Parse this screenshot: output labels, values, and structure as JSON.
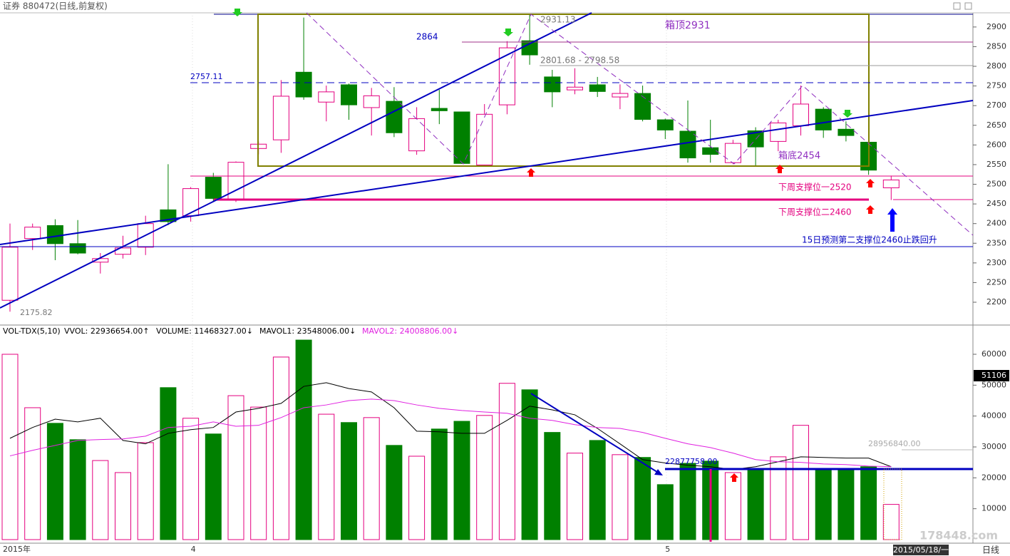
{
  "chart_data": [
    {
      "type": "candlestick",
      "title": "证券 880472(日线,前复权)",
      "categories": [
        "2015年",
        null,
        null,
        null,
        null,
        null,
        null,
        null,
        "4",
        null,
        null,
        null,
        null,
        null,
        null,
        null,
        null,
        null,
        null,
        null,
        null,
        null,
        null,
        null,
        null,
        null,
        null,
        null,
        null,
        "5",
        null,
        null,
        null,
        null,
        null,
        null,
        null,
        null,
        null,
        null
      ],
      "open": [
        2205,
        2362,
        2395,
        2349,
        2302,
        2322,
        2340,
        2435,
        2420,
        2518,
        2460,
        2591,
        2613,
        2785,
        2709,
        2753,
        2695,
        2711,
        2585,
        2693,
        2684,
        2549,
        2702,
        2865,
        2773,
        2740,
        2753,
        2722,
        2731,
        2664,
        2635,
        2593,
        2555,
        2636,
        2609,
        2649,
        2691,
        2640,
        2607,
        2491
      ],
      "high": [
        2400,
        2400,
        2411,
        2409,
        2325,
        2369,
        2420,
        2551,
        2493,
        2529,
        2558,
        2609,
        2765,
        2924,
        2751,
        2756,
        2745,
        2747,
        2696,
        2740,
        2684,
        2704,
        2864,
        2931,
        2791,
        2795,
        2773,
        2754,
        2751,
        2667,
        2713,
        2664,
        2613,
        2645,
        2664,
        2751,
        2696,
        2660,
        2607,
        2522
      ],
      "low": [
        2176,
        2333,
        2307,
        2322,
        2273,
        2311,
        2320,
        2396,
        2405,
        2456,
        2455,
        2576,
        2580,
        2715,
        2660,
        2664,
        2624,
        2620,
        2575,
        2653,
        2552,
        2545,
        2678,
        2804,
        2696,
        2729,
        2722,
        2691,
        2660,
        2615,
        2555,
        2555,
        2551,
        2545,
        2584,
        2624,
        2618,
        2609,
        2524,
        2460
      ],
      "close": [
        2340,
        2391,
        2349,
        2325,
        2311,
        2338,
        2400,
        2405,
        2489,
        2464,
        2556,
        2602,
        2724,
        2722,
        2735,
        2702,
        2725,
        2631,
        2667,
        2687,
        2553,
        2678,
        2847,
        2829,
        2735,
        2747,
        2736,
        2731,
        2665,
        2638,
        2567,
        2576,
        2604,
        2595,
        2656,
        2704,
        2638,
        2624,
        2536,
        2511
      ],
      "up_color": "#e4007f",
      "down_color": "#008000",
      "ylim": [
        2142,
        2936
      ],
      "yticks": [
        2200,
        2250,
        2300,
        2350,
        2400,
        2450,
        2500,
        2550,
        2600,
        2650,
        2700,
        2750,
        2800,
        2850,
        2900
      ],
      "annotations": [
        "2931.13",
        "2864",
        "箱顶2931",
        "2801.68 - 2798.58",
        "2757.11",
        "箱底2454",
        "下周支撑位一2520",
        "下周支撑位二2460",
        "15日预测第二支撑位2460止跌回升",
        "2175.82"
      ]
    },
    {
      "type": "bar",
      "title": "VOL-TDX(5,10)",
      "indicators": [
        "VVOL: 22936654.00↑",
        "VOLUME: 11468327.00↓"
      ],
      "values": [
        60000,
        42700,
        37650,
        32350,
        25600,
        21700,
        31400,
        49200,
        39300,
        34200,
        46600,
        42900,
        59100,
        64600,
        40600,
        37900,
        39500,
        30500,
        27000,
        35800,
        38300,
        40200,
        50600,
        48500,
        34700,
        28000,
        32100,
        27500,
        26600,
        17800,
        24700,
        25400,
        21700,
        22900,
        26800,
        37000,
        22900,
        22900,
        23600,
        11400
      ],
      "series": [
        {
          "name": "MAVOL1: 23548006.00↓",
          "color": "#000000",
          "values": [
            32800,
            36300,
            39000,
            38100,
            39300,
            32100,
            31000,
            34400,
            35600,
            36300,
            41300,
            42500,
            44100,
            49600,
            50800,
            48900,
            47800,
            42700,
            35100,
            34900,
            34400,
            34400,
            38600,
            43200,
            42000,
            40400,
            36000,
            31000,
            25900,
            24800,
            24100,
            23600,
            22700,
            23600,
            25200,
            26800,
            26600,
            26400,
            26400,
            23600
          ]
        },
        {
          "name": "MAVOL2: 24008806.00↓",
          "color": "#e020e0",
          "values": [
            27100,
            28900,
            30500,
            32100,
            32400,
            32600,
            33500,
            36300,
            36700,
            38100,
            36700,
            37000,
            39500,
            42700,
            43600,
            45000,
            45500,
            45000,
            43600,
            42500,
            41800,
            41300,
            40900,
            39300,
            38600,
            37200,
            36300,
            36000,
            34700,
            32800,
            31000,
            29800,
            28000,
            25900,
            25200,
            25000,
            24500,
            24300,
            23800,
            23600
          ]
        }
      ],
      "ylim": [
        0,
        69000
      ],
      "yticks": [
        10000,
        20000,
        30000,
        40000,
        50000,
        60000
      ],
      "last_value_label": "51106",
      "annotations": [
        "22877758.00",
        "28956840.00"
      ]
    }
  ],
  "cursor_date": "2015/05/18/一",
  "period": "日线",
  "watermark": "178448.com"
}
